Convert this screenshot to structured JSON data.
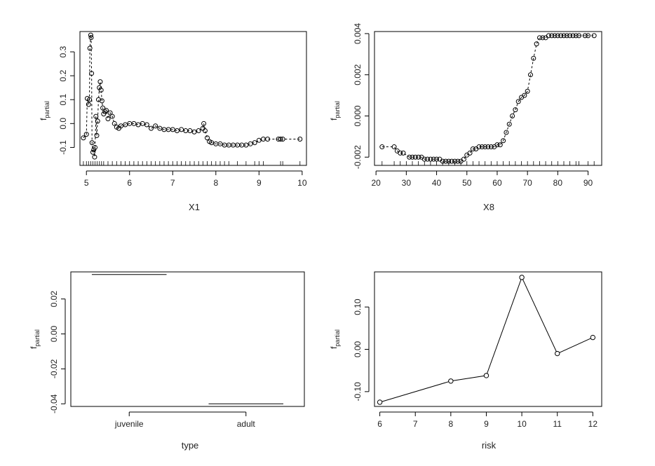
{
  "chart_data": [
    {
      "type": "scatter",
      "xlabel": "X1",
      "ylabel_main": "f",
      "ylabel_sub": "partial",
      "xlim": [
        4.85,
        10.1
      ],
      "ylim": [
        -0.175,
        0.385
      ],
      "xticks": [
        5,
        6,
        7,
        8,
        9,
        10
      ],
      "yticks": [
        -0.1,
        0.0,
        0.1,
        0.2,
        0.3
      ],
      "ytick_labels": [
        "-0.1",
        "0.0",
        "0.1",
        "0.2",
        "0.3"
      ],
      "rug": true,
      "points": [
        [
          4.93,
          -0.06
        ],
        [
          5.0,
          -0.045
        ],
        [
          5.02,
          0.105
        ],
        [
          5.05,
          0.08
        ],
        [
          5.07,
          0.1
        ],
        [
          5.08,
          0.315
        ],
        [
          5.1,
          0.37
        ],
        [
          5.11,
          0.36
        ],
        [
          5.12,
          0.21
        ],
        [
          5.13,
          -0.08
        ],
        [
          5.15,
          -0.12
        ],
        [
          5.17,
          -0.11
        ],
        [
          5.19,
          -0.14
        ],
        [
          5.2,
          -0.1
        ],
        [
          5.22,
          0.03
        ],
        [
          5.24,
          -0.05
        ],
        [
          5.26,
          0.01
        ],
        [
          5.28,
          0.1
        ],
        [
          5.3,
          0.15
        ],
        [
          5.32,
          0.175
        ],
        [
          5.34,
          0.14
        ],
        [
          5.36,
          0.095
        ],
        [
          5.38,
          0.065
        ],
        [
          5.4,
          0.04
        ],
        [
          5.43,
          0.05
        ],
        [
          5.46,
          0.055
        ],
        [
          5.5,
          0.02
        ],
        [
          5.55,
          0.045
        ],
        [
          5.6,
          0.03
        ],
        [
          5.65,
          0.0
        ],
        [
          5.7,
          -0.015
        ],
        [
          5.75,
          -0.02
        ],
        [
          5.8,
          -0.01
        ],
        [
          5.9,
          -0.005
        ],
        [
          6.0,
          0.0
        ],
        [
          6.1,
          0.0
        ],
        [
          6.2,
          -0.005
        ],
        [
          6.3,
          0.0
        ],
        [
          6.4,
          -0.005
        ],
        [
          6.5,
          -0.02
        ],
        [
          6.6,
          -0.01
        ],
        [
          6.7,
          -0.02
        ],
        [
          6.8,
          -0.025
        ],
        [
          6.9,
          -0.025
        ],
        [
          7.0,
          -0.025
        ],
        [
          7.1,
          -0.03
        ],
        [
          7.2,
          -0.025
        ],
        [
          7.3,
          -0.03
        ],
        [
          7.4,
          -0.03
        ],
        [
          7.5,
          -0.035
        ],
        [
          7.6,
          -0.03
        ],
        [
          7.7,
          -0.02
        ],
        [
          7.72,
          0.0
        ],
        [
          7.75,
          -0.03
        ],
        [
          7.8,
          -0.06
        ],
        [
          7.85,
          -0.075
        ],
        [
          7.9,
          -0.08
        ],
        [
          8.0,
          -0.085
        ],
        [
          8.1,
          -0.085
        ],
        [
          8.2,
          -0.09
        ],
        [
          8.3,
          -0.09
        ],
        [
          8.4,
          -0.09
        ],
        [
          8.5,
          -0.09
        ],
        [
          8.6,
          -0.09
        ],
        [
          8.7,
          -0.09
        ],
        [
          8.8,
          -0.085
        ],
        [
          8.9,
          -0.08
        ],
        [
          9.0,
          -0.07
        ],
        [
          9.1,
          -0.065
        ],
        [
          9.2,
          -0.065
        ],
        [
          9.45,
          -0.065
        ],
        [
          9.5,
          -0.065
        ],
        [
          9.55,
          -0.065
        ],
        [
          9.95,
          -0.065
        ]
      ],
      "rug_x": [
        4.93,
        5.0,
        5.05,
        5.1,
        5.15,
        5.2,
        5.25,
        5.3,
        5.35,
        5.4,
        5.5,
        5.6,
        5.7,
        5.8,
        5.9,
        6.0,
        6.1,
        6.2,
        6.3,
        6.4,
        6.5,
        6.6,
        6.7,
        6.8,
        6.9,
        7.0,
        7.1,
        7.2,
        7.3,
        7.4,
        7.5,
        7.6,
        7.7,
        7.8,
        7.9,
        8.0,
        8.1,
        8.2,
        8.3,
        8.5,
        8.7,
        8.9,
        9.0,
        9.1,
        9.5,
        9.55,
        9.95
      ]
    },
    {
      "type": "scatter",
      "xlabel": "X8",
      "ylabel_main": "f",
      "ylabel_sub": "partial",
      "xlim": [
        19.5,
        94.5
      ],
      "ylim": [
        -0.0024,
        0.0041
      ],
      "xticks": [
        20,
        30,
        40,
        50,
        60,
        70,
        80,
        90
      ],
      "yticks": [
        -0.002,
        0.0,
        0.002,
        0.004
      ],
      "ytick_labels": [
        "-0.002",
        "0.000",
        "0.002",
        "0.004"
      ],
      "rug": true,
      "points": [
        [
          22,
          -0.0015
        ],
        [
          26,
          -0.0015
        ],
        [
          27,
          -0.0017
        ],
        [
          28,
          -0.0018
        ],
        [
          29,
          -0.0018
        ],
        [
          31,
          -0.002
        ],
        [
          32,
          -0.002
        ],
        [
          33,
          -0.002
        ],
        [
          34,
          -0.002
        ],
        [
          35,
          -0.002
        ],
        [
          36,
          -0.0021
        ],
        [
          37,
          -0.0021
        ],
        [
          38,
          -0.0021
        ],
        [
          39,
          -0.0021
        ],
        [
          40,
          -0.0021
        ],
        [
          41,
          -0.0021
        ],
        [
          42,
          -0.0022
        ],
        [
          43,
          -0.0022
        ],
        [
          44,
          -0.0022
        ],
        [
          45,
          -0.0022
        ],
        [
          46,
          -0.0022
        ],
        [
          47,
          -0.0022
        ],
        [
          48,
          -0.0022
        ],
        [
          49,
          -0.0021
        ],
        [
          50,
          -0.0019
        ],
        [
          51,
          -0.0018
        ],
        [
          52,
          -0.0016
        ],
        [
          53,
          -0.0016
        ],
        [
          54,
          -0.0015
        ],
        [
          55,
          -0.0015
        ],
        [
          56,
          -0.0015
        ],
        [
          57,
          -0.0015
        ],
        [
          58,
          -0.0015
        ],
        [
          59,
          -0.0015
        ],
        [
          60,
          -0.0014
        ],
        [
          61,
          -0.0014
        ],
        [
          62,
          -0.0012
        ],
        [
          63,
          -0.0008
        ],
        [
          64,
          -0.0004
        ],
        [
          65,
          0.0
        ],
        [
          66,
          0.0003
        ],
        [
          67,
          0.0007
        ],
        [
          68,
          0.0009
        ],
        [
          69,
          0.001
        ],
        [
          70,
          0.0012
        ],
        [
          71,
          0.002
        ],
        [
          72,
          0.0028
        ],
        [
          73,
          0.0035
        ],
        [
          74,
          0.0038
        ],
        [
          75,
          0.0038
        ],
        [
          76,
          0.0038
        ],
        [
          77,
          0.0039
        ],
        [
          78,
          0.0039
        ],
        [
          79,
          0.0039
        ],
        [
          80,
          0.0039
        ],
        [
          81,
          0.0039
        ],
        [
          82,
          0.0039
        ],
        [
          83,
          0.0039
        ],
        [
          84,
          0.0039
        ],
        [
          85,
          0.0039
        ],
        [
          86,
          0.0039
        ],
        [
          87,
          0.0039
        ],
        [
          89,
          0.0039
        ],
        [
          90,
          0.0039
        ],
        [
          92,
          0.0039
        ]
      ],
      "rug_x": [
        22,
        26,
        28,
        30,
        32,
        34,
        36,
        38,
        40,
        42,
        44,
        46,
        48,
        50,
        52,
        54,
        56,
        58,
        60,
        62,
        64,
        66,
        68,
        70,
        72,
        74,
        76,
        78,
        80,
        82,
        84,
        86,
        87,
        90,
        92
      ]
    },
    {
      "type": "bar",
      "xlabel": "type",
      "ylabel_main": "f",
      "ylabel_sub": "partial",
      "categories": [
        "juvenile",
        "adult"
      ],
      "values": [
        0.034,
        -0.04
      ],
      "ylim": [
        -0.0415,
        0.0355
      ],
      "yticks": [
        -0.04,
        -0.02,
        0.0,
        0.02
      ],
      "ytick_labels": [
        "-0.04",
        "-0.02",
        "0.00",
        "0.02"
      ]
    },
    {
      "type": "line",
      "xlabel": "risk",
      "ylabel_main": "f",
      "ylabel_sub": "partial",
      "x": [
        6,
        8,
        9,
        10,
        11,
        12
      ],
      "y": [
        -0.125,
        -0.075,
        -0.062,
        0.17,
        -0.01,
        0.028
      ],
      "xlim": [
        5.85,
        12.25
      ],
      "ylim": [
        -0.135,
        0.183
      ],
      "xticks": [
        6,
        7,
        8,
        9,
        10,
        11,
        12
      ],
      "yticks": [
        -0.1,
        0.0,
        0.1
      ],
      "ytick_labels": [
        "-0.10",
        "0.00",
        "0.10"
      ]
    }
  ]
}
